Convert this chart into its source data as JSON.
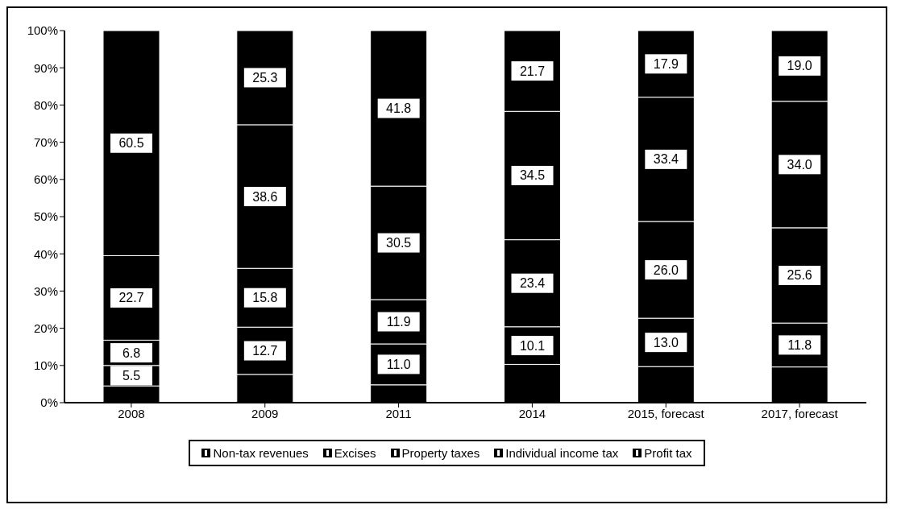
{
  "chart_data": {
    "type": "bar",
    "stacked": true,
    "categories": [
      "2008",
      "2009",
      "2011",
      "2014",
      "2015, forecast",
      "2017, forecast"
    ],
    "series": [
      {
        "name": "Non-tax revenues",
        "color": "#000000",
        "values": [
          4.5,
          7.6,
          4.8,
          10.3,
          9.7,
          9.6
        ]
      },
      {
        "name": "Excises",
        "color": "#000000",
        "values": [
          5.5,
          12.7,
          11.0,
          10.1,
          13.0,
          11.8
        ],
        "value_labels": [
          "5.5",
          "12.7",
          "11.0",
          "10.1",
          "13.0",
          "11.8"
        ]
      },
      {
        "name": "Property taxes",
        "color": "#000000",
        "values": [
          6.8,
          15.8,
          11.9,
          23.4,
          26.0,
          25.6
        ],
        "value_labels": [
          "6.8",
          "15.8",
          "11.9",
          "23.4",
          "26.0",
          "25.6"
        ]
      },
      {
        "name": "Individual income tax",
        "color": "#000000",
        "values": [
          22.7,
          38.6,
          30.5,
          34.5,
          33.4,
          34.0
        ],
        "value_labels": [
          "22.7",
          "38.6",
          "30.5",
          "34.5",
          "33.4",
          "34.0"
        ]
      },
      {
        "name": "Profit tax",
        "color": "#000000",
        "values": [
          60.5,
          25.3,
          41.8,
          21.7,
          17.9,
          19.0
        ],
        "value_labels": [
          "60.5",
          "25.3",
          "41.8",
          "21.7",
          "17.9",
          "19.0"
        ]
      }
    ],
    "ylim": [
      0,
      100
    ],
    "yticks": [
      {
        "value": 0,
        "label": "0%"
      },
      {
        "value": 10,
        "label": "10%"
      },
      {
        "value": 20,
        "label": "20%"
      },
      {
        "value": 30,
        "label": "30%"
      },
      {
        "value": 40,
        "label": "40%"
      },
      {
        "value": 50,
        "label": "50%"
      },
      {
        "value": 60,
        "label": "60%"
      },
      {
        "value": 70,
        "label": "70%"
      },
      {
        "value": 80,
        "label": "80%"
      },
      {
        "value": 90,
        "label": "90%"
      },
      {
        "value": 100,
        "label": "100%"
      }
    ],
    "legend": "bottom"
  }
}
